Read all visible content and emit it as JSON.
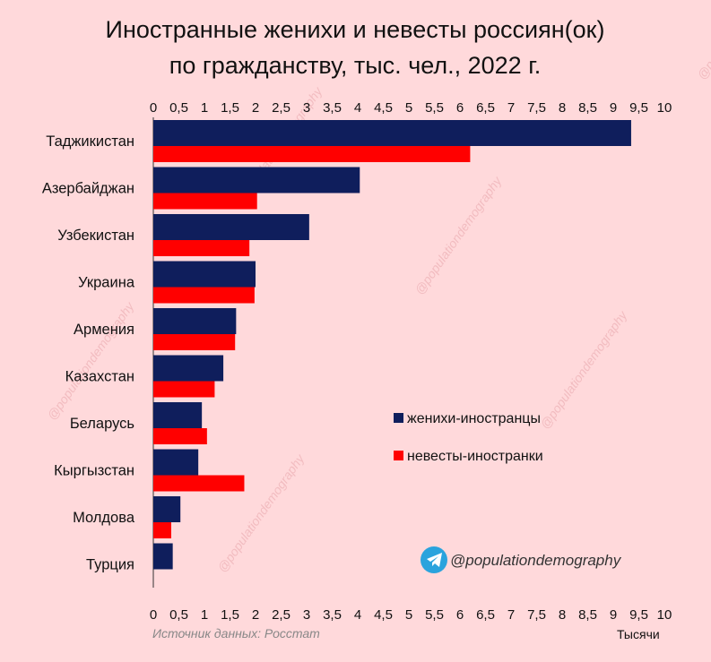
{
  "watermark": "@populationdemography",
  "telegram": {
    "icon": "telegram-icon",
    "handle": "@populationdemography"
  },
  "colors": {
    "background": "#ffd9db",
    "grooms": "#0f1e5c",
    "brides": "#ff0000",
    "telegram": "#2aa3dd"
  },
  "chart_data": {
    "type": "bar",
    "orientation": "horizontal",
    "title": [
      "Иностранные женихи и невесты россиян(ок)",
      "по гражданству, тыс. чел., 2022 г."
    ],
    "categories": [
      "Таджикистан",
      "Азербайджан",
      "Узбекистан",
      "Украина",
      "Армения",
      "Казахстан",
      "Беларусь",
      "Кыргызстан",
      "Молдова",
      "Турция"
    ],
    "series": [
      {
        "name": "женихи-иностранцы",
        "color": "#0f1e5c",
        "values": [
          9.35,
          4.04,
          3.05,
          2.0,
          1.62,
          1.37,
          0.95,
          0.88,
          0.53,
          0.38
        ]
      },
      {
        "name": "невесты-иностранки",
        "color": "#ff0000",
        "values": [
          6.2,
          2.03,
          1.88,
          1.98,
          1.6,
          1.2,
          1.05,
          1.78,
          0.35,
          null
        ]
      }
    ],
    "xlim": [
      0,
      10
    ],
    "ticks": [
      "0",
      "0,5",
      "1",
      "1,5",
      "2",
      "2,5",
      "3",
      "3,5",
      "4",
      "4,5",
      "5",
      "5,5",
      "6",
      "6,5",
      "7",
      "7,5",
      "8",
      "8,5",
      "9",
      "9,5",
      "10"
    ],
    "tick_values": [
      0,
      0.5,
      1,
      1.5,
      2,
      2.5,
      3,
      3.5,
      4,
      4.5,
      5,
      5.5,
      6,
      6.5,
      7,
      7.5,
      8,
      8.5,
      9,
      9.5,
      10
    ],
    "x_axis_position": "top and bottom",
    "unit_label": "Тысячи",
    "source": "Источник данных: Росстат",
    "legend_position": "right-middle",
    "grid": false
  }
}
